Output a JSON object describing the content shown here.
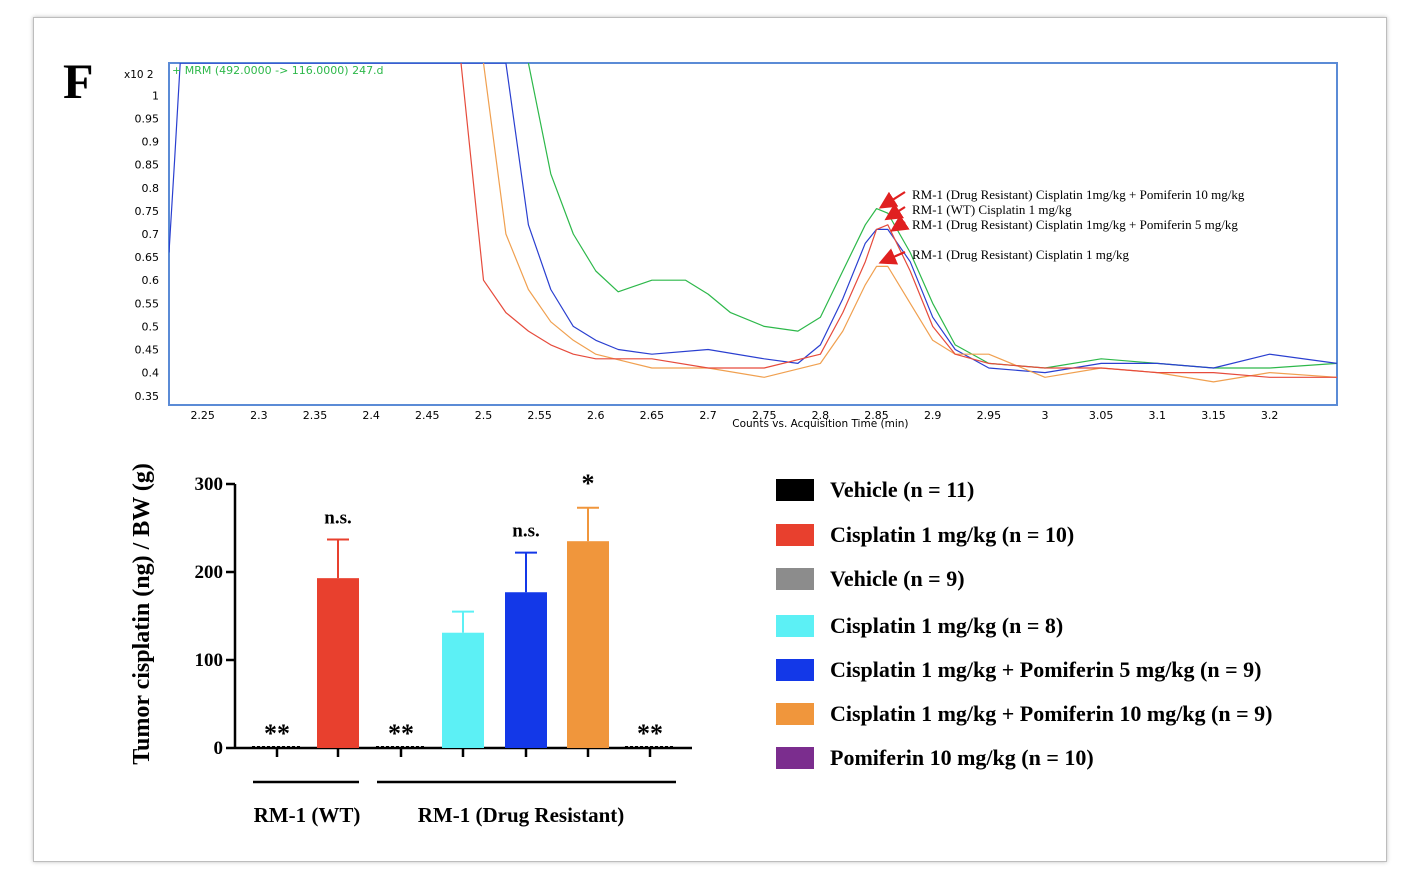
{
  "panel_letter": "F",
  "chart_data": [
    {
      "type": "line",
      "title": "+ MRM (492.0000 -> 116.0000) 247.d",
      "xlabel": "Counts vs. Acquisition Time (min)",
      "ylabel": "",
      "y_multiplier": "x10 2",
      "xlim": [
        2.22,
        3.26
      ],
      "ylim": [
        0.33,
        1.07
      ],
      "x_ticks": [
        2.25,
        2.3,
        2.35,
        2.4,
        2.45,
        2.5,
        2.55,
        2.6,
        2.65,
        2.7,
        2.75,
        2.8,
        2.85,
        2.9,
        2.95,
        3,
        3.05,
        3.1,
        3.15,
        3.2
      ],
      "x_tick_labels": [
        "2.25",
        "2.3",
        "2.35",
        "2.4",
        "2.45",
        "2.5",
        "2.55",
        "2.6",
        "2.65",
        "2.7",
        "2.75",
        "2.8",
        "2.85",
        "2.9",
        "2.95",
        "3",
        "3.05",
        "3.1",
        "3.15",
        "3.2"
      ],
      "y_ticks": [
        0.35,
        0.4,
        0.45,
        0.5,
        0.55,
        0.6,
        0.65,
        0.7,
        0.75,
        0.8,
        0.85,
        0.9,
        0.95,
        1
      ],
      "y_tick_labels": [
        "0.35",
        "0.4",
        "0.45",
        "0.5",
        "0.55",
        "0.6",
        "0.65",
        "0.7",
        "0.75",
        "0.8",
        "0.85",
        "0.9",
        "0.95",
        "1"
      ],
      "frame_color": "#5b8bd6",
      "series": [
        {
          "color": "#2db84a",
          "x": [
            2.54,
            2.56,
            2.58,
            2.6,
            2.62,
            2.65,
            2.68,
            2.7,
            2.72,
            2.75,
            2.78,
            2.8,
            2.82,
            2.84,
            2.85,
            2.86,
            2.88,
            2.9,
            2.92,
            2.95,
            3.0,
            3.05,
            3.1,
            3.15,
            3.2,
            3.26
          ],
          "y": [
            1.07,
            0.83,
            0.7,
            0.62,
            0.575,
            0.6,
            0.6,
            0.57,
            0.53,
            0.5,
            0.49,
            0.52,
            0.62,
            0.72,
            0.755,
            0.745,
            0.66,
            0.55,
            0.46,
            0.42,
            0.41,
            0.43,
            0.42,
            0.41,
            0.41,
            0.42
          ]
        },
        {
          "color": "#2a3fd0",
          "x": [
            2.22,
            2.225,
            2.23,
            2.52,
            2.54,
            2.56,
            2.58,
            2.6,
            2.62,
            2.65,
            2.7,
            2.75,
            2.78,
            2.8,
            2.82,
            2.84,
            2.85,
            2.86,
            2.88,
            2.9,
            2.92,
            2.95,
            3.0,
            3.05,
            3.1,
            3.15,
            3.2,
            3.26
          ],
          "y": [
            0.66,
            0.86,
            1.07,
            1.07,
            0.72,
            0.58,
            0.5,
            0.47,
            0.45,
            0.44,
            0.45,
            0.43,
            0.42,
            0.46,
            0.56,
            0.68,
            0.71,
            0.71,
            0.64,
            0.52,
            0.45,
            0.41,
            0.4,
            0.42,
            0.42,
            0.41,
            0.44,
            0.42
          ]
        },
        {
          "color": "#f0a050",
          "x": [
            2.5,
            2.52,
            2.54,
            2.56,
            2.58,
            2.6,
            2.65,
            2.7,
            2.75,
            2.8,
            2.82,
            2.84,
            2.85,
            2.86,
            2.88,
            2.9,
            2.92,
            2.95,
            3.0,
            3.05,
            3.1,
            3.15,
            3.2,
            3.26
          ],
          "y": [
            1.07,
            0.7,
            0.58,
            0.51,
            0.47,
            0.44,
            0.41,
            0.41,
            0.39,
            0.42,
            0.49,
            0.59,
            0.63,
            0.63,
            0.55,
            0.47,
            0.44,
            0.44,
            0.39,
            0.41,
            0.4,
            0.38,
            0.4,
            0.39
          ]
        },
        {
          "color": "#e64b3c",
          "x": [
            2.48,
            2.5,
            2.52,
            2.54,
            2.56,
            2.58,
            2.6,
            2.65,
            2.7,
            2.75,
            2.8,
            2.82,
            2.84,
            2.85,
            2.86,
            2.88,
            2.9,
            2.92,
            2.95,
            3.0,
            3.05,
            3.1,
            3.15,
            3.2,
            3.26
          ],
          "y": [
            1.07,
            0.6,
            0.53,
            0.49,
            0.46,
            0.44,
            0.43,
            0.43,
            0.41,
            0.41,
            0.44,
            0.53,
            0.64,
            0.71,
            0.72,
            0.62,
            0.5,
            0.44,
            0.42,
            0.41,
            0.41,
            0.4,
            0.4,
            0.39,
            0.39
          ]
        }
      ],
      "annotations": [
        {
          "text": "RM-1 (Drug Resistant) Cisplatin 1mg/kg + Pomiferin 10 mg/kg",
          "x": 2.85,
          "y": 0.76,
          "arrow_color": "#e02020"
        },
        {
          "text": "RM-1 (WT) Cisplatin 1 mg/kg",
          "x": 2.855,
          "y": 0.735,
          "arrow_color": "#e02020"
        },
        {
          "text": "RM-1 (Drug Resistant) Cisplatin 1mg/kg + Pomiferin 5 mg/kg",
          "x": 2.86,
          "y": 0.71,
          "arrow_color": "#e02020"
        },
        {
          "text": "RM-1 (Drug Resistant) Cisplatin 1 mg/kg",
          "x": 2.85,
          "y": 0.64,
          "arrow_color": "#e02020"
        }
      ]
    },
    {
      "type": "bar",
      "ylabel": "Tumor cisplatin (ng) / BW (g)",
      "xlabel": "",
      "ylim": [
        0,
        300
      ],
      "y_ticks": [
        0,
        100,
        200,
        300
      ],
      "y_tick_labels": [
        "0",
        "100",
        "200",
        "300"
      ],
      "bars": [
        {
          "group": "RM-1 (WT)",
          "series": "Vehicle (n = 11)",
          "value": 0,
          "error": 0,
          "color": "#000000",
          "sig": "**"
        },
        {
          "group": "RM-1 (WT)",
          "series": "Cisplatin 1 mg/kg (n = 10)",
          "value": 193,
          "error": 44,
          "color": "#e8402e",
          "sig": "n.s."
        },
        {
          "group": "RM-1 (Drug Resistant)",
          "series": "Vehicle (n = 9)",
          "value": 0,
          "error": 0,
          "color": "#8c8c8c",
          "sig": "**"
        },
        {
          "group": "RM-1 (Drug Resistant)",
          "series": "Cisplatin 1 mg/kg (n = 8)",
          "value": 131,
          "error": 24,
          "color": "#5cf0f5",
          "sig": ""
        },
        {
          "group": "RM-1 (Drug Resistant)",
          "series": "Cisplatin 1 mg/kg + Pomiferin 5 mg/kg (n = 9)",
          "value": 177,
          "error": 45,
          "color": "#1338e8",
          "sig": "n.s."
        },
        {
          "group": "RM-1 (Drug Resistant)",
          "series": "Cisplatin 1 mg/kg + Pomiferin 10 mg/kg (n = 9)",
          "value": 235,
          "error": 38,
          "color": "#f0963c",
          "sig": "*"
        },
        {
          "group": "RM-1 (Drug Resistant)",
          "series": "Pomiferin 10 mg/kg (n = 10)",
          "value": 0,
          "error": 0,
          "color": "#7b2d8e",
          "sig": "**"
        }
      ],
      "groups": [
        {
          "label": "RM-1 (WT)"
        },
        {
          "label": "RM-1 (Drug Resistant)"
        }
      ],
      "legend": [
        {
          "label": "Vehicle (n = 11)",
          "color": "#000000"
        },
        {
          "label": "Cisplatin 1 mg/kg (n = 10)",
          "color": "#e8402e"
        },
        {
          "label": "Vehicle (n = 9)",
          "color": "#8c8c8c"
        },
        {
          "label": "Cisplatin 1 mg/kg (n = 8)",
          "color": "#5cf0f5"
        },
        {
          "label": "Cisplatin 1 mg/kg + Pomiferin 5 mg/kg (n = 9)",
          "color": "#1338e8"
        },
        {
          "label": "Cisplatin 1 mg/kg + Pomiferin 10 mg/kg (n = 9)",
          "color": "#f0963c"
        },
        {
          "label": "Pomiferin 10 mg/kg (n = 10)",
          "color": "#7b2d8e"
        }
      ],
      "legend_position": "right"
    }
  ]
}
